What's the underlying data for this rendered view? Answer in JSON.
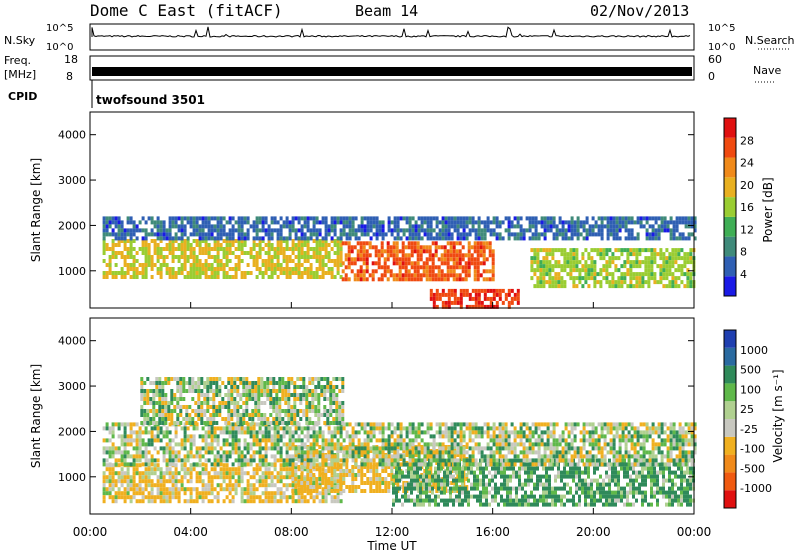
{
  "header": {
    "station": "Dome C East (fitACF)",
    "beam": "Beam 14",
    "date": "02/Nov/2013"
  },
  "top_panels": {
    "nsky_label": "N.Sky",
    "nsky_ticks": [
      "10^5",
      "10^0"
    ],
    "nsearch_label": "N.Search",
    "nsearch_ticks": [
      "10^5",
      "10^0"
    ],
    "freq_label": "Freq.",
    "freq_unit": "[MHz]",
    "freq_ticks": [
      "18",
      "8"
    ],
    "nave_label": "Nave",
    "nave_ticks": [
      "60",
      "0"
    ],
    "cpid_label": "CPID",
    "cpid_value": "twofsound 3501"
  },
  "x_axis": {
    "label": "Time UT",
    "ticks": [
      "00:00",
      "04:00",
      "08:00",
      "12:00",
      "16:00",
      "20:00",
      "00:00"
    ]
  },
  "colors": {
    "power": [
      "#1a1ae6",
      "#2f5fb3",
      "#3f8a7a",
      "#3fae55",
      "#9acd32",
      "#e8b020",
      "#f08a1a",
      "#f04a10",
      "#e01010"
    ],
    "velocity_pos": [
      "#1f3fb0",
      "#2a6aa0",
      "#2f8a5a",
      "#5fb84a",
      "#b0d090"
    ],
    "velocity_zero": "#c8c8c0",
    "velocity_neg": [
      "#f0b020",
      "#f08a1a",
      "#f05a10",
      "#e01010"
    ]
  },
  "chart_data": [
    {
      "type": "heatmap",
      "title": "",
      "xlabel": "",
      "ylabel": "Slant Range [km]",
      "yticks": [
        "1000",
        "2000",
        "3000",
        "4000"
      ],
      "ylim": [
        180,
        4500
      ],
      "xlim_hours": [
        0,
        24
      ],
      "colorbar_label": "Power [dB]",
      "colorbar_ticks": [
        "4",
        "8",
        "12",
        "16",
        "20",
        "24",
        "28"
      ],
      "scale": [
        0,
        32
      ],
      "bands": [
        {
          "t0": 0.5,
          "t1": 10.0,
          "r0": 900,
          "r1": 1700,
          "value": 18
        },
        {
          "t0": 10.0,
          "t1": 16.0,
          "r0": 850,
          "r1": 1650,
          "value": 26
        },
        {
          "t0": 13.5,
          "t1": 17.0,
          "r0": 200,
          "r1": 600,
          "value": 28
        },
        {
          "t0": 0.5,
          "t1": 24.0,
          "r0": 1700,
          "r1": 2200,
          "value": 6
        },
        {
          "t0": 17.5,
          "t1": 24.0,
          "r0": 700,
          "r1": 1500,
          "value": 16
        }
      ]
    },
    {
      "type": "heatmap",
      "title": "",
      "xlabel": "Time UT",
      "ylabel": "Slant Range [km]",
      "yticks": [
        "1000",
        "2000",
        "3000",
        "4000"
      ],
      "ylim": [
        180,
        4500
      ],
      "xlim_hours": [
        0,
        24
      ],
      "colorbar_label": "Velocity [m s⁻¹]",
      "colorbar_ticks": [
        "1000",
        "500",
        "100",
        "25",
        "-25",
        "-100",
        "-500",
        "-1000"
      ],
      "scale": [
        -1000,
        1000
      ],
      "bands": [
        {
          "t0": 0.5,
          "t1": 10.0,
          "r0": 500,
          "r1": 1300,
          "value": -120
        },
        {
          "t0": 8.0,
          "t1": 15.0,
          "r0": 700,
          "r1": 1700,
          "value": -150
        },
        {
          "t0": 12.0,
          "t1": 24.0,
          "r0": 400,
          "r1": 1400,
          "value": 120
        },
        {
          "t0": 0.5,
          "t1": 24.0,
          "r0": 1300,
          "r1": 2200,
          "value": 0
        },
        {
          "t0": 2.0,
          "t1": 10.0,
          "r0": 2200,
          "r1": 3200,
          "value": 0
        }
      ]
    }
  ]
}
